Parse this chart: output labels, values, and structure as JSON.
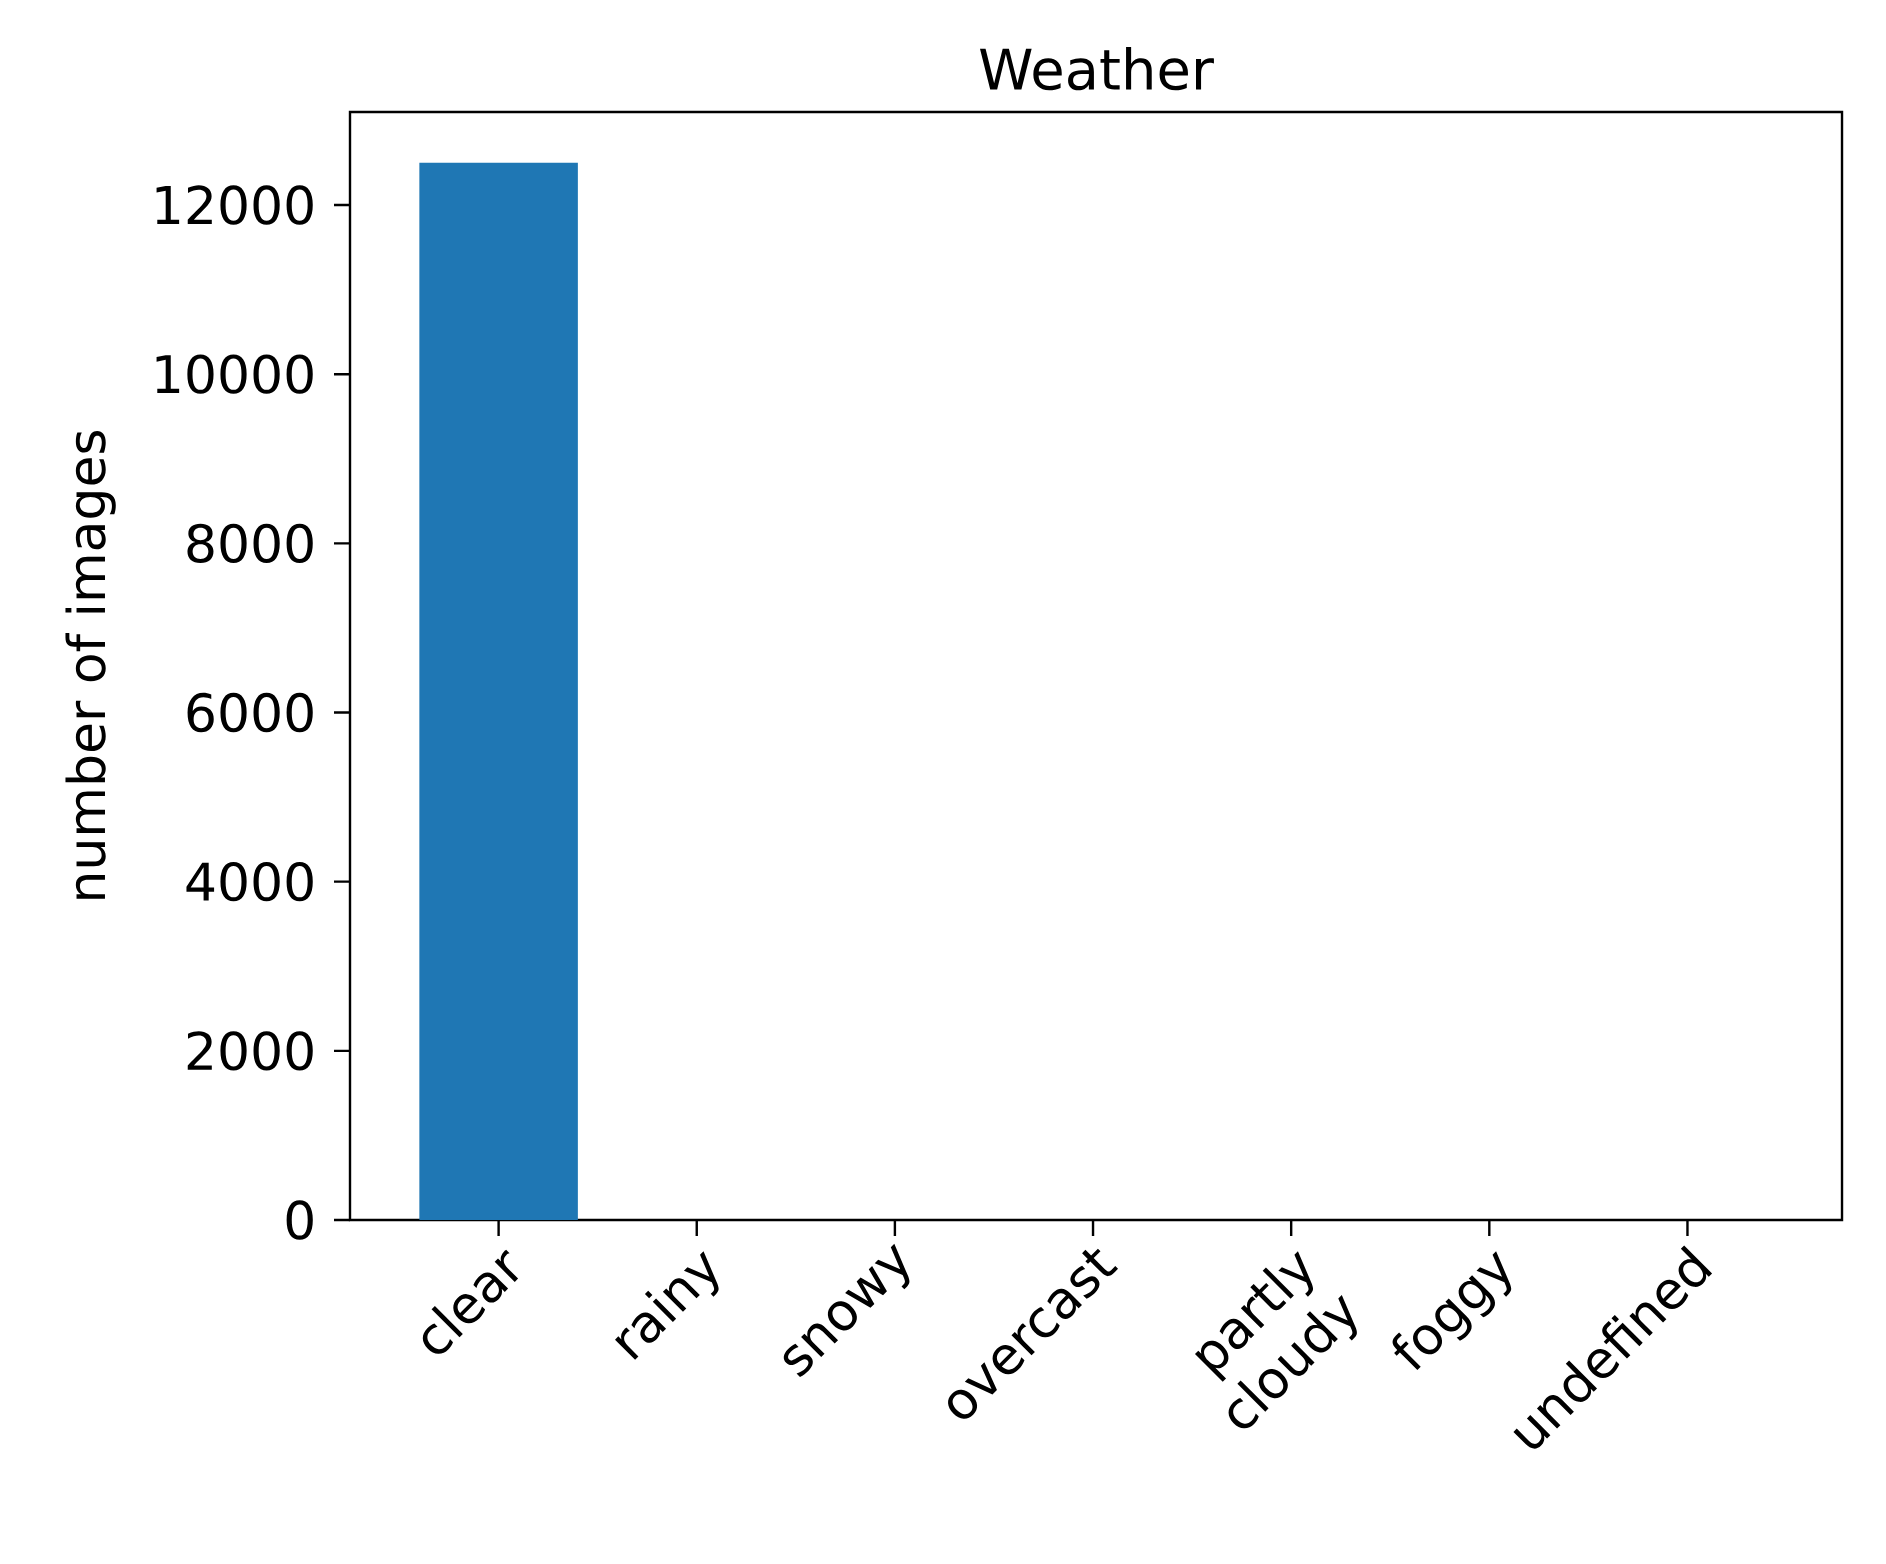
{
  "chart_data": {
    "type": "bar",
    "title": "Weather",
    "ylabel": "number of images",
    "categories": [
      "clear",
      "rainy",
      "snowy",
      "overcast",
      "partly cloudy",
      "foggy",
      "undefined"
    ],
    "values": [
      12500,
      0,
      0,
      0,
      0,
      0,
      0
    ],
    "color": "#1f77b4",
    "ylim": [
      0,
      13100
    ],
    "yticks": [
      0,
      2000,
      4000,
      6000,
      8000,
      10000,
      12000
    ],
    "grid": false
  }
}
